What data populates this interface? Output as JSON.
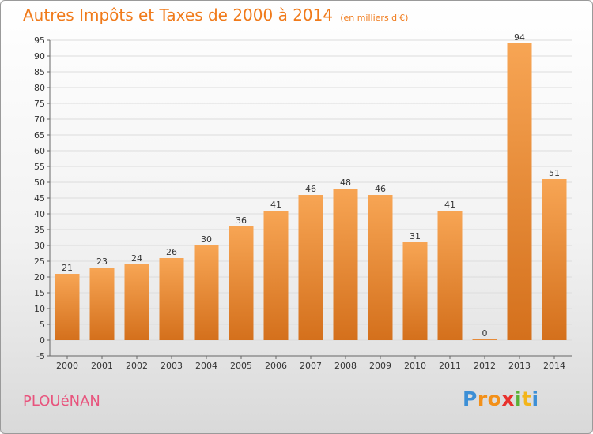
{
  "header": {
    "title": "Autres Impôts et Taxes de 2000 à 2014",
    "subtitle": "(en milliers d'€)"
  },
  "footer": {
    "commune": "PLOUéNAN",
    "logo_letters": [
      "P",
      "r",
      "o",
      "x",
      "i",
      "t",
      "i"
    ]
  },
  "colors": {
    "title": "#f07a1a",
    "commune": "#e8547d",
    "bar_top": "#f7a554",
    "bar_bottom": "#d4701c",
    "grid": "#dcdcdc"
  },
  "chart_data": {
    "type": "bar",
    "title": "Autres Impôts et Taxes de 2000 à 2014",
    "subtitle": "(en milliers d'€)",
    "xlabel": "",
    "ylabel": "",
    "categories": [
      "2000",
      "2001",
      "2002",
      "2003",
      "2004",
      "2005",
      "2006",
      "2007",
      "2008",
      "2009",
      "2010",
      "2011",
      "2012",
      "2013",
      "2014"
    ],
    "values": [
      21,
      23,
      24,
      26,
      30,
      36,
      41,
      46,
      48,
      46,
      31,
      41,
      0,
      94,
      51
    ],
    "ylim": [
      -5,
      95
    ],
    "yticks": [
      -5,
      0,
      5,
      10,
      15,
      20,
      25,
      30,
      35,
      40,
      45,
      50,
      55,
      60,
      65,
      70,
      75,
      80,
      85,
      90,
      95
    ],
    "grid": true,
    "legend": "none"
  }
}
